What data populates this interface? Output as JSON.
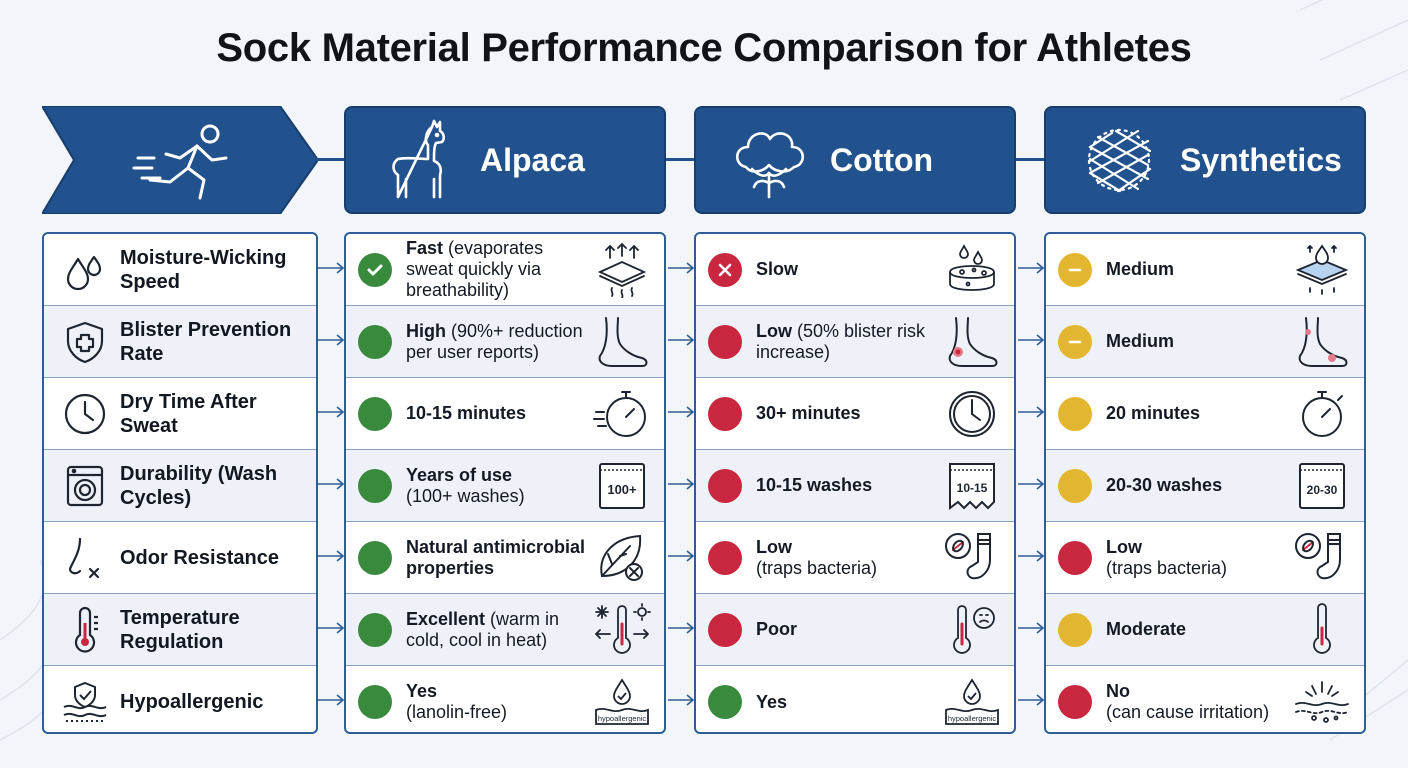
{
  "title": "Sock Material Performance Comparison for Athletes",
  "colors": {
    "header": "#22528d",
    "good": "#3a8a3e",
    "bad": "#c8273f",
    "medium": "#e3b631"
  },
  "header_icon": "runner-icon",
  "columns": [
    {
      "label": "Alpaca",
      "icon": "alpaca-icon"
    },
    {
      "label": "Cotton",
      "icon": "cotton-boll-icon"
    },
    {
      "label": "Synthetics",
      "icon": "mesh-fiber-icon"
    }
  ],
  "attributes": [
    {
      "label": "Moisture-Wicking Speed",
      "icon": "droplets-icon"
    },
    {
      "label": "Blister Prevention Rate",
      "icon": "shield-plus-icon"
    },
    {
      "label": "Dry Time After Sweat",
      "icon": "clock-icon"
    },
    {
      "label": "Durability (Wash Cycles)",
      "icon": "washing-machine-icon"
    },
    {
      "label": "Odor Resistance",
      "icon": "nose-icon"
    },
    {
      "label": "Temperature Regulation",
      "icon": "thermometer-icon"
    },
    {
      "label": "Hypoallergenic",
      "icon": "skin-shield-icon"
    }
  ],
  "cells": [
    [
      {
        "status": "good",
        "check": true,
        "bold": "Fast",
        "rest": " (evaporates sweat quickly via breathability)",
        "icon": "evaporation-fabric-icon"
      },
      {
        "status": "bad",
        "cross": true,
        "bold": "Slow",
        "rest": "",
        "icon": "wet-sponge-icon"
      },
      {
        "status": "mid",
        "dash": true,
        "bold": "Medium",
        "rest": "",
        "icon": "wicking-layer-icon"
      }
    ],
    [
      {
        "status": "good",
        "bold": "High",
        "rest": " (90%+ reduction per user reports)",
        "icon": "foot-icon"
      },
      {
        "status": "bad",
        "bold": "Low",
        "rest": " (50% blister risk increase)",
        "icon": "blistered-foot-icon"
      },
      {
        "status": "mid",
        "dash": true,
        "bold": "Medium",
        "rest": "",
        "icon": "irritated-foot-icon"
      }
    ],
    [
      {
        "status": "good",
        "bold": "10-15 minutes",
        "rest": "",
        "icon": "stopwatch-icon"
      },
      {
        "status": "bad",
        "bold": "30+ minutes",
        "rest": "",
        "icon": "clock-icon"
      },
      {
        "status": "mid",
        "bold": "20 minutes",
        "rest": "",
        "icon": "stopwatch-icon"
      }
    ],
    [
      {
        "status": "good",
        "bold": "Years of use",
        "rest": "(100+ washes)",
        "tag": "100+",
        "icon": "wash-tag-icon"
      },
      {
        "status": "bad",
        "bold": "10-15 washes",
        "rest": "",
        "tag": "10-15",
        "icon": "torn-tag-icon"
      },
      {
        "status": "mid",
        "bold": "20-30 washes",
        "rest": "",
        "tag": "20-30",
        "icon": "wash-tag-icon"
      }
    ],
    [
      {
        "status": "good",
        "bold": "Natural antimicrobial properties",
        "rest": "",
        "icon": "leaf-no-icon"
      },
      {
        "status": "bad",
        "bold": "Low",
        "rest": "(traps bacteria)",
        "icon": "bacteria-sock-icon"
      },
      {
        "status": "bad",
        "bold": "Low",
        "rest": "(traps bacteria)",
        "icon": "bacteria-sock-icon"
      }
    ],
    [
      {
        "status": "good",
        "bold": "Excellent",
        "rest": " (warm in cold, cool in heat)",
        "icon": "hot-cold-thermometer-icon"
      },
      {
        "status": "bad",
        "bold": "Poor",
        "rest": "",
        "icon": "sad-thermometer-icon"
      },
      {
        "status": "mid",
        "bold": "Moderate",
        "rest": "",
        "icon": "thermometer-icon"
      }
    ],
    [
      {
        "status": "good",
        "bold": "Yes",
        "rest": "(lanolin-free)",
        "tag": "hypoallergenic",
        "icon": "hypoallergenic-drop-icon"
      },
      {
        "status": "good",
        "bold": "Yes",
        "rest": "",
        "tag": "hypoallergenic",
        "icon": "hypoallergenic-drop-icon"
      },
      {
        "status": "bad",
        "bold": "No",
        "rest": "(can cause irritation)",
        "icon": "irritated-skin-icon"
      }
    ]
  ]
}
